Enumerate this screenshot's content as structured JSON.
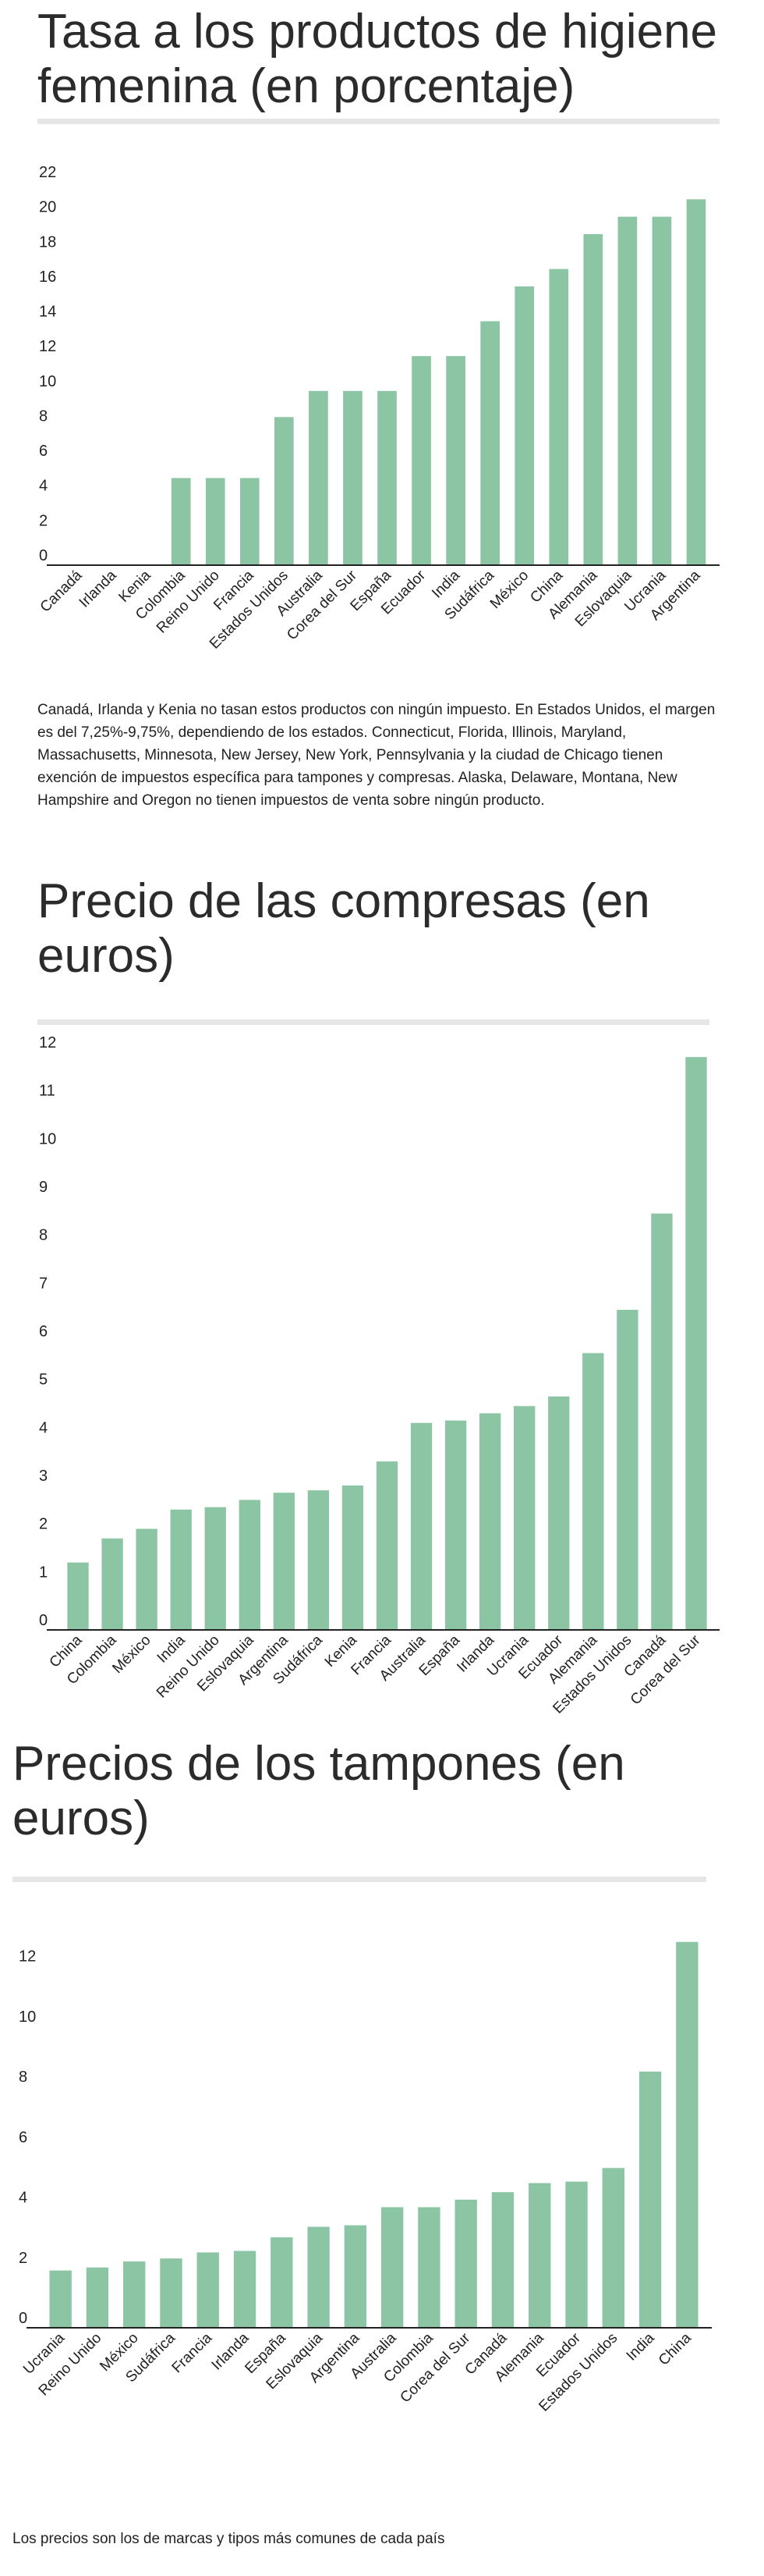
{
  "charts": [
    {
      "title": "Tasa a los productos de higiene femenina (en porcentaje)",
      "note": "Canadá, Irlanda y Kenia no tasan estos productos con ningún impuesto. En Estados Unidos, el margen es del 7,25%-9,75%, dependiendo de los estados. Connecticut, Florida, Illinois, Maryland, Massachusetts, Minnesota, New Jersey, New York, Pennsylvania y la ciudad de Chicago tienen exención de impuestos específica para tampones y compresas. Alaska, Delaware, Montana, New Hampshire and Oregon no tienen impuestos de venta sobre ningún producto."
    },
    {
      "title": "Precio de las compresas (en euros)"
    },
    {
      "title": "Precios de los tampones (en euros)",
      "note": "Los precios son los de marcas y tipos más comunes de cada país"
    }
  ],
  "style": {
    "bar_color": "#8cc5a3",
    "axis_color": "#222222",
    "title_color": "#2b2b2b"
  },
  "chart_data": [
    {
      "type": "bar",
      "title": "Tasa a los productos de higiene femenina (en porcentaje)",
      "xlabel": "",
      "ylabel": "",
      "ylim": [
        0,
        22
      ],
      "yticks": [
        0,
        2,
        4,
        6,
        8,
        10,
        12,
        14,
        16,
        18,
        20,
        22
      ],
      "grid": false,
      "categories": [
        "Canadá",
        "Irlanda",
        "Kenia",
        "Colombia",
        "Reino Unido",
        "Francia",
        "Estados Unidos",
        "Australia",
        "Corea del Sur",
        "España",
        "Ecuador",
        "India",
        "Sudáfrica",
        "México",
        "China",
        "Alemania",
        "Eslovaquia",
        "Ucrania",
        "Argentina"
      ],
      "values": [
        0,
        0,
        0,
        5,
        5,
        5,
        8.5,
        10,
        10,
        10,
        12,
        12,
        14,
        16,
        17,
        19,
        20,
        20,
        21
      ]
    },
    {
      "type": "bar",
      "title": "Precio de las compresas (en euros)",
      "xlabel": "",
      "ylabel": "",
      "ylim": [
        0,
        12
      ],
      "yticks": [
        0,
        1,
        2,
        3,
        4,
        5,
        6,
        7,
        8,
        9,
        10,
        11,
        12
      ],
      "grid": false,
      "categories": [
        "China",
        "Colombia",
        "México",
        "India",
        "Reino Unido",
        "Eslovaquia",
        "Argentina",
        "Sudáfrica",
        "Kenia",
        "Francia",
        "Australia",
        "España",
        "Irlanda",
        "Ucrania",
        "Ecuador",
        "Alemania",
        "Estados Unidos",
        "Canadá",
        "Corea del Sur"
      ],
      "values": [
        1.4,
        1.9,
        2.1,
        2.5,
        2.55,
        2.7,
        2.85,
        2.9,
        3.0,
        3.5,
        4.3,
        4.35,
        4.5,
        4.65,
        4.85,
        5.75,
        6.65,
        8.65,
        11.9
      ]
    },
    {
      "type": "bar",
      "title": "Precios de los tampones (en euros)",
      "xlabel": "",
      "ylabel": "",
      "ylim": [
        0,
        13
      ],
      "yticks": [
        0,
        2,
        4,
        6,
        8,
        10,
        12
      ],
      "grid": false,
      "categories": [
        "Ucrania",
        "Reino Unido",
        "México",
        "Sudáfrica",
        "Francia",
        "Irlanda",
        "España",
        "Eslovaquia",
        "Argentina",
        "Australia",
        "Colombia",
        "Corea del Sur",
        "Canadá",
        "Alemania",
        "Ecuador",
        "Estados Unidos",
        "India",
        "China"
      ],
      "values": [
        1.9,
        2.0,
        2.2,
        2.3,
        2.5,
        2.55,
        3.0,
        3.35,
        3.4,
        4.0,
        4.0,
        4.25,
        4.5,
        4.8,
        4.85,
        5.3,
        8.5,
        12.8
      ]
    }
  ]
}
